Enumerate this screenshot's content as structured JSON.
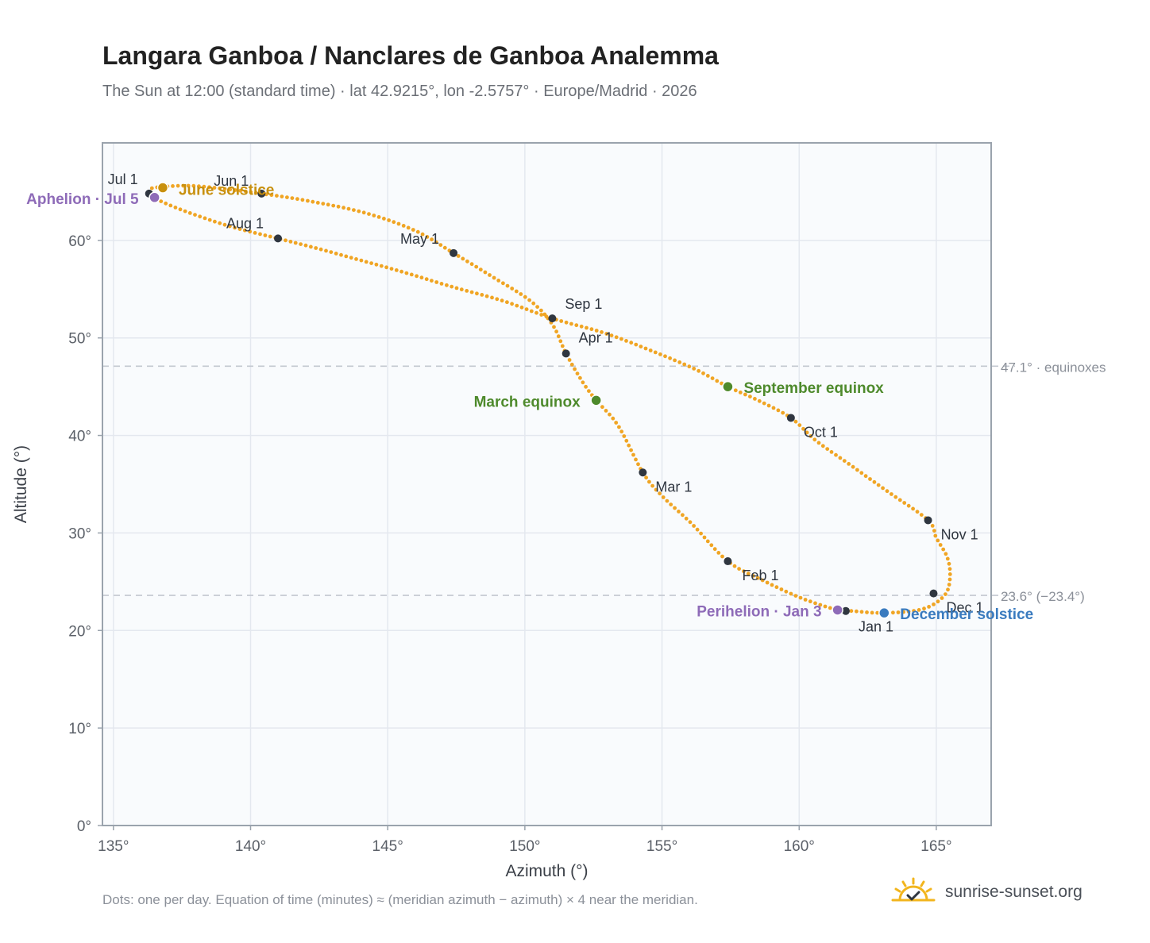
{
  "header": {
    "title": "Langara Ganboa / Nanclares de Ganboa Analemma",
    "subtitle": "The Sun at 12:00 (standard time) · lat 42.9215°, lon -2.5757° · Europe/Madrid · 2026"
  },
  "footer": {
    "note": "Dots: one per day. Equation of time (minutes) ≈ (meridian azimuth − azimuth) × 4 near the meridian.",
    "brand": "sunrise-sunset.org"
  },
  "colors": {
    "curve": "#f0a524",
    "month_marker": "#2f3640",
    "aphelion": "#8e6bb8",
    "perihelion": "#8e6bb8",
    "june_solstice": "#c8900e",
    "december_solstice": "#3a7bbf",
    "equinox": "#4e8a2c",
    "plot_bg": "#f9fbfd",
    "grid": "#e4e8ef",
    "reference_line": "#c3c8d0"
  },
  "chart_data": {
    "type": "scatter",
    "xlabel": "Azimuth (°)",
    "ylabel": "Altitude (°)",
    "xlim": [
      134.6,
      167.0
    ],
    "ylim": [
      0,
      70
    ],
    "x_ticks": [
      135,
      140,
      145,
      150,
      155,
      160,
      165
    ],
    "y_ticks": [
      0,
      10,
      20,
      30,
      40,
      50,
      60
    ],
    "x_tick_labels": [
      "135°",
      "140°",
      "145°",
      "150°",
      "155°",
      "160°",
      "165°"
    ],
    "y_tick_labels": [
      "0°",
      "10°",
      "20°",
      "30°",
      "40°",
      "50°",
      "60°"
    ],
    "grid": true,
    "series": [
      {
        "points": [
          [
            161.9,
            22.0
          ],
          [
            163.1,
            21.8
          ],
          [
            164.5,
            22.2
          ],
          [
            165.3,
            23.6
          ],
          [
            165.5,
            25.5
          ],
          [
            165.4,
            27.5
          ],
          [
            165.0,
            29.5
          ],
          [
            164.7,
            31.3
          ],
          [
            163.2,
            34.3
          ],
          [
            161.9,
            36.9
          ],
          [
            160.6,
            39.5
          ],
          [
            159.7,
            41.8
          ],
          [
            158.5,
            43.6
          ],
          [
            157.4,
            45.0
          ],
          [
            156.2,
            46.8
          ],
          [
            154.6,
            48.7
          ],
          [
            152.9,
            50.5
          ],
          [
            151.0,
            52.0
          ],
          [
            149.2,
            53.8
          ],
          [
            147.4,
            55.2
          ],
          [
            145.5,
            56.8
          ],
          [
            143.7,
            58.2
          ],
          [
            142.4,
            59.2
          ],
          [
            141.0,
            60.2
          ],
          [
            139.3,
            61.4
          ],
          [
            137.8,
            62.8
          ],
          [
            136.9,
            63.8
          ],
          [
            136.5,
            64.4
          ],
          [
            136.3,
            65.2
          ],
          [
            136.8,
            65.5
          ],
          [
            137.8,
            65.6
          ],
          [
            139.0,
            65.3
          ],
          [
            140.4,
            64.8
          ],
          [
            142.2,
            64.0
          ],
          [
            144.2,
            62.8
          ],
          [
            146.0,
            61.0
          ],
          [
            147.4,
            58.7
          ],
          [
            148.8,
            56.3
          ],
          [
            150.2,
            53.8
          ],
          [
            151.0,
            51.4
          ],
          [
            151.5,
            48.4
          ],
          [
            152.1,
            45.5
          ],
          [
            152.6,
            43.6
          ],
          [
            153.4,
            41.0
          ],
          [
            154.3,
            36.2
          ],
          [
            155.0,
            33.8
          ],
          [
            156.1,
            30.9
          ],
          [
            157.4,
            27.1
          ],
          [
            158.7,
            25.1
          ],
          [
            160.1,
            23.3
          ],
          [
            161.4,
            22.1
          ],
          [
            161.9,
            22.0
          ]
        ]
      }
    ],
    "month_markers": [
      {
        "label": "Jan 1",
        "az": 161.7,
        "alt": 22.0
      },
      {
        "label": "Feb 1",
        "az": 157.4,
        "alt": 27.1
      },
      {
        "label": "Mar 1",
        "az": 154.3,
        "alt": 36.2
      },
      {
        "label": "Apr 1",
        "az": 151.5,
        "alt": 48.4
      },
      {
        "label": "May 1",
        "az": 147.4,
        "alt": 58.7
      },
      {
        "label": "Jun 1",
        "az": 140.4,
        "alt": 64.8
      },
      {
        "label": "Jul 1",
        "az": 136.3,
        "alt": 64.8
      },
      {
        "label": "Aug 1",
        "az": 141.0,
        "alt": 60.2
      },
      {
        "label": "Sep 1",
        "az": 151.0,
        "alt": 52.0
      },
      {
        "label": "Oct 1",
        "az": 159.7,
        "alt": 41.8
      },
      {
        "label": "Nov 1",
        "az": 164.7,
        "alt": 31.3
      },
      {
        "label": "Dec 1",
        "az": 164.9,
        "alt": 23.8
      }
    ],
    "events": [
      {
        "label": "Aphelion · Jul 5",
        "az": 136.5,
        "alt": 64.4,
        "color_key": "aphelion"
      },
      {
        "label": "June solstice",
        "az": 136.8,
        "alt": 65.4,
        "color_key": "june_solstice"
      },
      {
        "label": "March equinox",
        "az": 152.6,
        "alt": 43.6,
        "color_key": "equinox"
      },
      {
        "label": "September equinox",
        "az": 157.4,
        "alt": 45.0,
        "color_key": "equinox"
      },
      {
        "label": "Perihelion · Jan 3",
        "az": 161.4,
        "alt": 22.1,
        "color_key": "perihelion"
      },
      {
        "label": "December solstice",
        "az": 163.1,
        "alt": 21.8,
        "color_key": "december_solstice"
      }
    ],
    "reference_lines": [
      {
        "alt": 47.1,
        "label": "47.1° · equinoxes"
      },
      {
        "alt": 23.6,
        "label": "23.6° (−23.4°)"
      }
    ]
  }
}
